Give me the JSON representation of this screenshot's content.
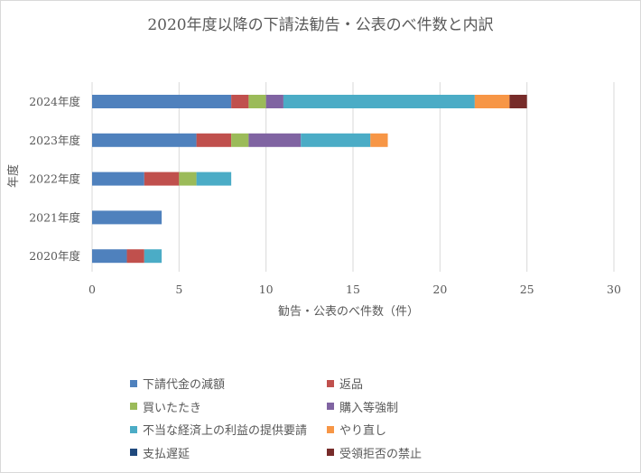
{
  "chart_data": {
    "type": "bar",
    "orientation": "horizontal",
    "stacked": true,
    "title": "2020年度以降の下請法勧告・公表のべ件数と内訳",
    "xlabel": "勧告・公表のべ件数（件）",
    "ylabel": "年度",
    "xlim": [
      0,
      30
    ],
    "xticks": [
      0,
      5,
      10,
      15,
      20,
      25,
      30
    ],
    "grid": "vertical",
    "legend_position": "bottom",
    "categories": [
      "2024年度",
      "2023年度",
      "2022年度",
      "2021年度",
      "2020年度"
    ],
    "series": [
      {
        "name": "下請代金の減額",
        "color": "#4f81bd",
        "values": [
          8,
          6,
          3,
          4,
          2
        ]
      },
      {
        "name": "返品",
        "color": "#c0504d",
        "values": [
          1,
          2,
          2,
          0,
          1
        ]
      },
      {
        "name": "買いたたき",
        "color": "#9bbb59",
        "values": [
          1,
          1,
          1,
          0,
          0
        ]
      },
      {
        "name": "購入等強制",
        "color": "#8064a2",
        "values": [
          1,
          3,
          0,
          0,
          0
        ]
      },
      {
        "name": "不当な経済上の利益の提供要請",
        "color": "#4bacc6",
        "values": [
          11,
          4,
          2,
          0,
          1
        ]
      },
      {
        "name": "やり直し",
        "color": "#f79646",
        "values": [
          2,
          1,
          0,
          0,
          0
        ]
      },
      {
        "name": "支払遅延",
        "color": "#1f497d",
        "values": [
          0,
          0,
          0,
          0,
          0
        ]
      },
      {
        "name": "受領拒否の禁止",
        "color": "#772c2a",
        "values": [
          1,
          0,
          0,
          0,
          0
        ]
      }
    ]
  }
}
